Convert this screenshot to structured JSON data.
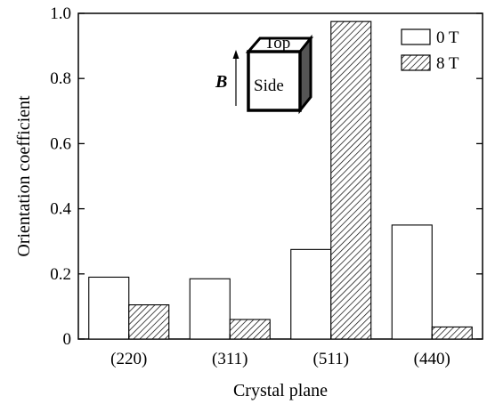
{
  "chart_data": {
    "type": "bar",
    "categories": [
      "(220)",
      "(311)",
      "(511)",
      "(440)"
    ],
    "series": [
      {
        "name": "0 T",
        "values": [
          0.19,
          0.185,
          0.275,
          0.35
        ],
        "fill": "#ffffff",
        "pattern": "none"
      },
      {
        "name": "8 T",
        "values": [
          0.105,
          0.06,
          0.975,
          0.037
        ],
        "fill": "#ffffff",
        "pattern": "diagonal-hatch"
      }
    ],
    "xlabel": "Crystal plane",
    "ylabel": "Orientation coefficient",
    "ylim": [
      0,
      1.0
    ],
    "yticks": [
      0,
      0.2,
      0.4,
      0.6,
      0.8,
      1.0
    ],
    "ytick_labels": [
      "0",
      "0.2",
      "0.4",
      "0.6",
      "0.8",
      "1.0"
    ],
    "grid": false,
    "legend_position": "top-right",
    "inset": {
      "field_label": "B",
      "top_label": "Top",
      "side_label": "Side"
    }
  }
}
